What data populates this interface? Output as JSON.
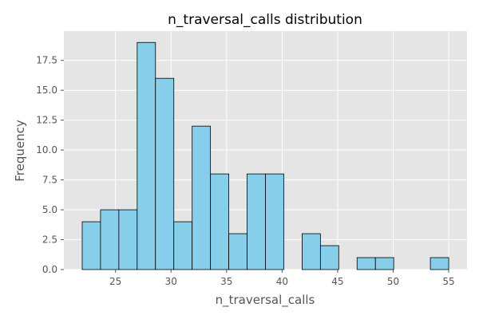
{
  "chart_data": {
    "type": "bar",
    "title": "n_traversal_calls distribution",
    "xlabel": "n_traversal_calls",
    "ylabel": "Frequency",
    "xlim": [
      20.35,
      56.65
    ],
    "ylim": [
      0,
      19.95
    ],
    "bins": {
      "start": 22,
      "width": 1.65,
      "counts": [
        4,
        5,
        5,
        19,
        16,
        4,
        12,
        8,
        3,
        8,
        8,
        0,
        3,
        2,
        0,
        1,
        1,
        0,
        0,
        1
      ]
    },
    "xticks": [
      25,
      30,
      35,
      40,
      45,
      50,
      55
    ],
    "xtick_labels": [
      "25",
      "30",
      "35",
      "40",
      "45",
      "50",
      "55"
    ],
    "yticks": [
      0,
      2.5,
      5,
      7.5,
      10,
      12.5,
      15,
      17.5
    ],
    "ytick_labels": [
      "0.0",
      "2.5",
      "5.0",
      "7.5",
      "10.0",
      "12.5",
      "15.0",
      "17.5"
    ],
    "grid": true,
    "style": "ggplot",
    "colors": {
      "bar_fill": "#87ceeb",
      "bar_edge": "#000000",
      "plot_background": "#e5e5e5",
      "grid": "#ffffff",
      "tick_text": "#555555"
    }
  }
}
